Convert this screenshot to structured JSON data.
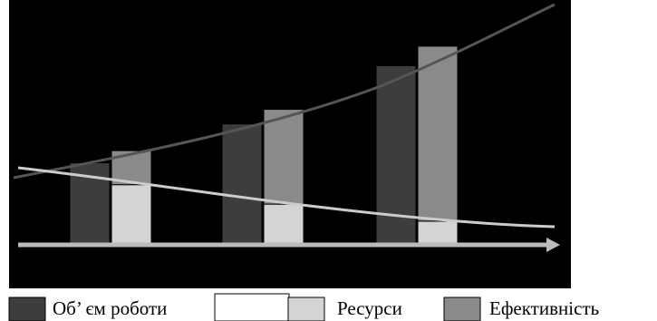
{
  "chart_data": {
    "type": "bar",
    "categories": [
      null,
      null,
      null
    ],
    "ylim": [
      0,
      100
    ],
    "series": [
      {
        "name": "Об’ єм роботи",
        "color": "#3d3d3d",
        "stack": "a",
        "values": [
          33,
          49,
          73
        ]
      },
      {
        "name": "Ресурси",
        "color": "#d4d4d4",
        "stack": "b",
        "values": [
          24,
          16,
          9
        ]
      },
      {
        "name": "Ефективність",
        "color": "#8a8a8a",
        "stack": "b",
        "values": [
          14,
          39,
          72
        ]
      }
    ]
  }
}
